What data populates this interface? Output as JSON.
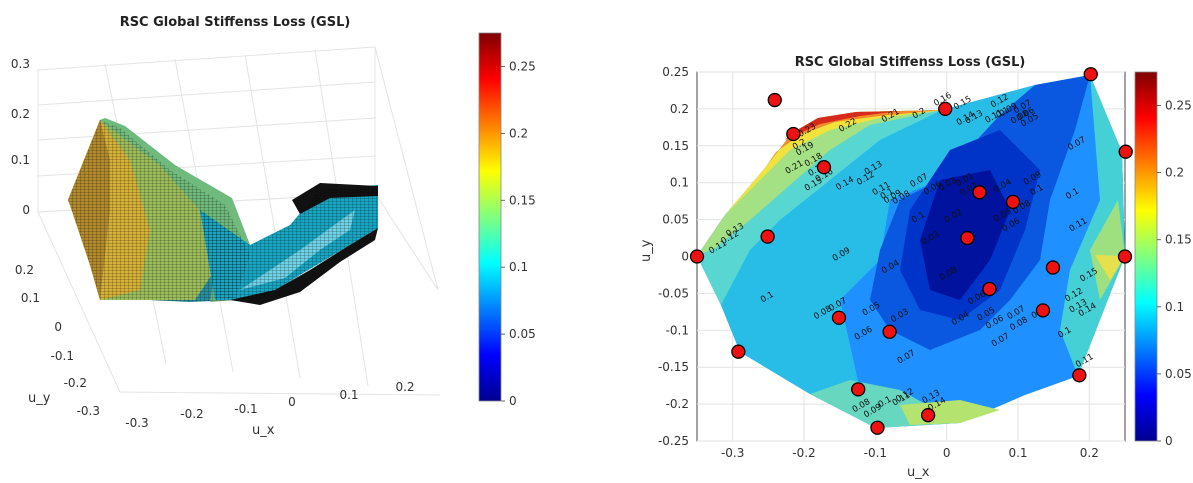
{
  "chart_data": [
    {
      "type": "surface",
      "title": "RSC Global Stiffenss Loss (GSL)",
      "xlabel": "u_x",
      "ylabel": "u_y",
      "xticks": [
        "-0.3",
        "-0.2",
        "-0.1",
        "0",
        "0.1",
        "0.2"
      ],
      "yticks": [
        "0.2",
        "0.1",
        "0",
        "-0.1",
        "-0.2",
        "-0.3"
      ],
      "zticks": [
        "0",
        "0.1",
        "0.2",
        "0.3"
      ],
      "colorbar": {
        "ticks": [
          "0",
          "0.05",
          "0.1",
          "0.15",
          "0.2",
          "0.25"
        ],
        "range": [
          0,
          0.275
        ]
      },
      "colormap": "jet"
    },
    {
      "type": "contour",
      "title": "RSC Global Stiffenss Loss (GSL)",
      "xlabel": "u_x",
      "ylabel": "u_y",
      "xlim": [
        -0.35,
        0.25
      ],
      "ylim": [
        -0.25,
        0.25
      ],
      "xticks": [
        "-0.3",
        "-0.2",
        "-0.1",
        "0",
        "0.1",
        "0.2"
      ],
      "yticks": [
        "0.25",
        "0.2",
        "0.15",
        "0.1",
        "0.05",
        "0",
        "-0.05",
        "-0.1",
        "-0.15",
        "-0.2",
        "-0.25"
      ],
      "colorbar": {
        "ticks": [
          "0",
          "0.05",
          "0.1",
          "0.15",
          "0.2",
          "0.25"
        ],
        "range": [
          0,
          0.275
        ]
      },
      "colormap": "jet",
      "grid": true,
      "points": [
        [
          -0.241,
          0.212
        ],
        [
          -0.215,
          0.166
        ],
        [
          -0.172,
          0.121
        ],
        [
          0.202,
          0.247
        ],
        [
          -0.002,
          0.2
        ],
        [
          0.251,
          0.142
        ],
        [
          0.046,
          0.087
        ],
        [
          0.093,
          0.074
        ],
        [
          -0.251,
          0.027
        ],
        [
          0.029,
          0.025
        ],
        [
          -0.35,
          0.0
        ],
        [
          0.25,
          0.0
        ],
        [
          0.149,
          -0.015
        ],
        [
          0.06,
          -0.044
        ],
        [
          0.135,
          -0.073
        ],
        [
          -0.151,
          -0.083
        ],
        [
          -0.08,
          -0.102
        ],
        [
          -0.292,
          -0.129
        ],
        [
          0.186,
          -0.161
        ],
        [
          -0.124,
          -0.18
        ],
        [
          -0.026,
          -0.215
        ],
        [
          -0.097,
          -0.232
        ]
      ],
      "contour_labels": [
        {
          "t": "0.23",
          "x": -0.194,
          "y": 0.168
        },
        {
          "t": "0.22",
          "x": -0.137,
          "y": 0.175
        },
        {
          "t": "0.21",
          "x": -0.077,
          "y": 0.188
        },
        {
          "t": "0.2",
          "x": -0.037,
          "y": 0.191
        },
        {
          "t": "0.21",
          "x": -0.212,
          "y": 0.118
        },
        {
          "t": "0.2",
          "x": -0.205,
          "y": 0.149
        },
        {
          "t": "0.19",
          "x": -0.197,
          "y": 0.143
        },
        {
          "t": "0.18",
          "x": -0.185,
          "y": 0.128
        },
        {
          "t": "0.17",
          "x": -0.18,
          "y": 0.115
        },
        {
          "t": "0.16",
          "x": -0.17,
          "y": 0.107
        },
        {
          "t": "0.15",
          "x": -0.185,
          "y": 0.095
        },
        {
          "t": "0.14",
          "x": -0.141,
          "y": 0.096
        },
        {
          "t": "0.13",
          "x": -0.101,
          "y": 0.117
        },
        {
          "t": "0.12",
          "x": -0.112,
          "y": 0.103
        },
        {
          "t": "0.11",
          "x": -0.09,
          "y": 0.089
        },
        {
          "t": "0.1",
          "x": -0.082,
          "y": 0.082
        },
        {
          "t": "0.09",
          "x": -0.074,
          "y": 0.078
        },
        {
          "t": "0.08",
          "x": -0.062,
          "y": 0.077
        },
        {
          "t": "0.07",
          "x": -0.037,
          "y": 0.1
        },
        {
          "t": "0.06",
          "x": -0.018,
          "y": 0.09
        },
        {
          "t": "0.03",
          "x": 0.003,
          "y": 0.095
        },
        {
          "t": "0.01",
          "x": 0.027,
          "y": 0.101
        },
        {
          "t": "0.02",
          "x": 0.033,
          "y": 0.088
        },
        {
          "t": "0.04",
          "x": 0.08,
          "y": 0.093
        },
        {
          "t": "0.16",
          "x": -0.004,
          "y": 0.21
        },
        {
          "t": "0.15",
          "x": 0.024,
          "y": 0.205
        },
        {
          "t": "0.14",
          "x": 0.028,
          "y": 0.184
        },
        {
          "t": "0.13",
          "x": 0.04,
          "y": 0.186
        },
        {
          "t": "0.12",
          "x": 0.076,
          "y": 0.208
        },
        {
          "t": "0.11",
          "x": 0.068,
          "y": 0.187
        },
        {
          "t": "0.1",
          "x": 0.08,
          "y": 0.192
        },
        {
          "t": "0.09",
          "x": 0.088,
          "y": 0.196
        },
        {
          "t": "0.08",
          "x": 0.104,
          "y": 0.186
        },
        {
          "t": "0.07",
          "x": 0.108,
          "y": 0.2
        },
        {
          "t": "0.06",
          "x": 0.112,
          "y": 0.19
        },
        {
          "t": "0.05",
          "x": 0.118,
          "y": 0.182
        },
        {
          "t": "0.07",
          "x": 0.184,
          "y": 0.15
        },
        {
          "t": "0.09",
          "x": 0.122,
          "y": 0.103
        },
        {
          "t": "0.1",
          "x": 0.128,
          "y": 0.087
        },
        {
          "t": "0.08",
          "x": 0.107,
          "y": 0.064
        },
        {
          "t": "0.06",
          "x": 0.092,
          "y": 0.04
        },
        {
          "t": "0.05",
          "x": 0.08,
          "y": 0.053
        },
        {
          "t": "0.1",
          "x": 0.178,
          "y": 0.082
        },
        {
          "t": "0.11",
          "x": 0.186,
          "y": 0.04
        },
        {
          "t": "0.13",
          "x": -0.295,
          "y": 0.033
        },
        {
          "t": "0.12",
          "x": -0.302,
          "y": 0.023
        },
        {
          "t": "0.11",
          "x": -0.319,
          "y": 0.01
        },
        {
          "t": "0.09",
          "x": -0.146,
          "y": 0.0
        },
        {
          "t": "0.03",
          "x": -0.021,
          "y": 0.022
        },
        {
          "t": "0.02",
          "x": 0.011,
          "y": 0.052
        },
        {
          "t": "0.04",
          "x": -0.077,
          "y": -0.017
        },
        {
          "t": "0.1",
          "x": -0.25,
          "y": -0.058
        },
        {
          "t": "0.08",
          "x": -0.172,
          "y": -0.079
        },
        {
          "t": "0.07",
          "x": -0.151,
          "y": -0.068
        },
        {
          "t": "0.05",
          "x": -0.104,
          "y": -0.074
        },
        {
          "t": "0.06",
          "x": -0.115,
          "y": -0.107
        },
        {
          "t": "0.03",
          "x": -0.064,
          "y": -0.083
        },
        {
          "t": "0.04",
          "x": 0.021,
          "y": -0.087
        },
        {
          "t": "0.05",
          "x": 0.057,
          "y": -0.081
        },
        {
          "t": "0.06",
          "x": 0.069,
          "y": -0.092
        },
        {
          "t": "0.07",
          "x": 0.099,
          "y": -0.079
        },
        {
          "t": "0.08",
          "x": 0.103,
          "y": -0.094
        },
        {
          "t": "0.07",
          "x": 0.077,
          "y": -0.116
        },
        {
          "t": "0.09",
          "x": 0.133,
          "y": -0.078
        },
        {
          "t": "0.1",
          "x": 0.167,
          "y": -0.106
        },
        {
          "t": "0.11",
          "x": 0.195,
          "y": -0.144
        },
        {
          "t": "0.07",
          "x": -0.055,
          "y": -0.139
        },
        {
          "t": "0.08",
          "x": -0.118,
          "y": -0.205
        },
        {
          "t": "0.09",
          "x": -0.102,
          "y": -0.212
        },
        {
          "t": "0.1",
          "x": -0.085,
          "y": -0.2
        },
        {
          "t": "0.11",
          "x": -0.062,
          "y": -0.196
        },
        {
          "t": "0.12",
          "x": -0.057,
          "y": -0.191
        },
        {
          "t": "0.13",
          "x": -0.02,
          "y": -0.193
        },
        {
          "t": "0.14",
          "x": -0.012,
          "y": -0.203
        },
        {
          "t": "0.12",
          "x": 0.18,
          "y": -0.055
        },
        {
          "t": "0.13",
          "x": 0.186,
          "y": -0.07
        },
        {
          "t": "0.14",
          "x": 0.199,
          "y": -0.075
        },
        {
          "t": "0.15",
          "x": 0.201,
          "y": -0.028
        },
        {
          "t": "0.1",
          "x": -0.038,
          "y": 0.05
        },
        {
          "t": "0.08",
          "x": 0.004,
          "y": -0.026
        },
        {
          "t": "0.06",
          "x": 0.044,
          "y": -0.059
        }
      ]
    }
  ]
}
